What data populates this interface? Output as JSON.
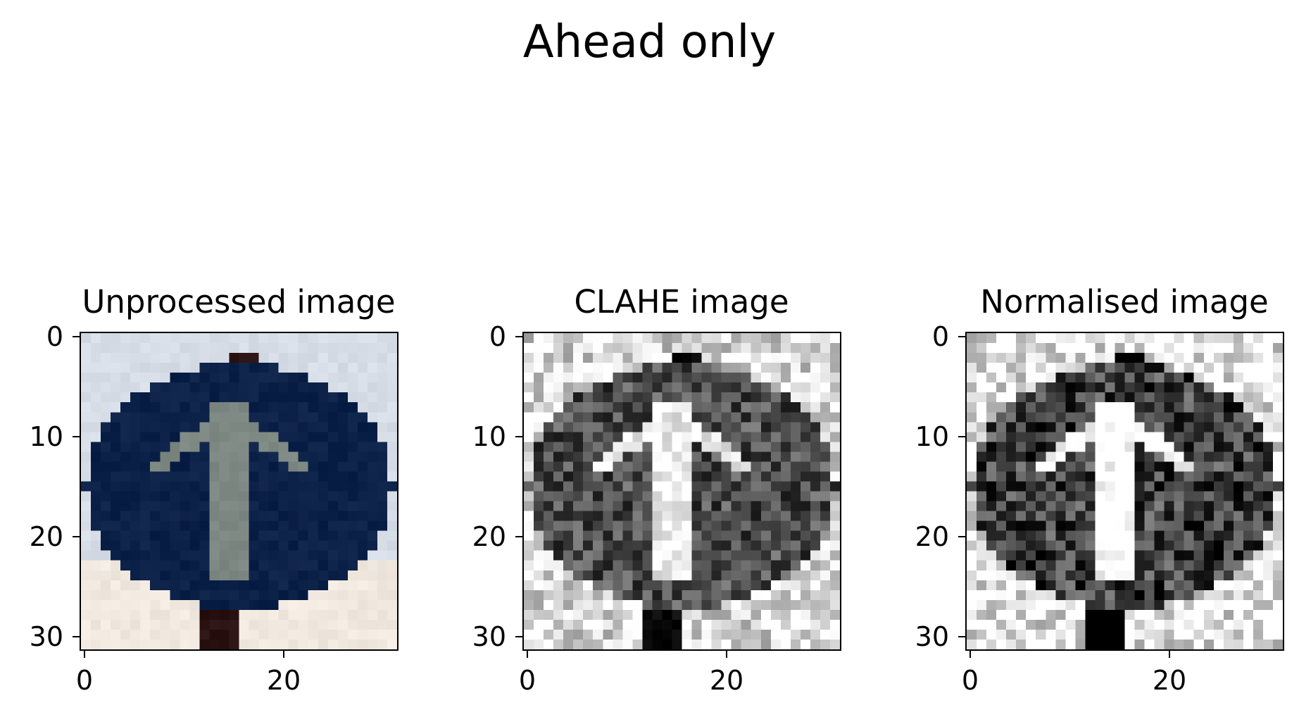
{
  "figure": {
    "title": "Ahead only"
  },
  "panels": [
    {
      "title": "Unprocessed image",
      "kind": "color",
      "colors": {
        "sky": "#d7dde6",
        "sky_low": "#f1e9e0",
        "sign": "#0c2147",
        "arrow": "#7e8883",
        "post": "#2a1212"
      }
    },
    {
      "title": "CLAHE image",
      "kind": "gray",
      "contrast": 0.55
    },
    {
      "title": "Normalised image",
      "kind": "gray",
      "contrast": 1.0
    }
  ],
  "axes": {
    "y_ticks": [
      "0",
      "10",
      "20",
      "30"
    ],
    "x_ticks": [
      "0",
      "20"
    ]
  }
}
